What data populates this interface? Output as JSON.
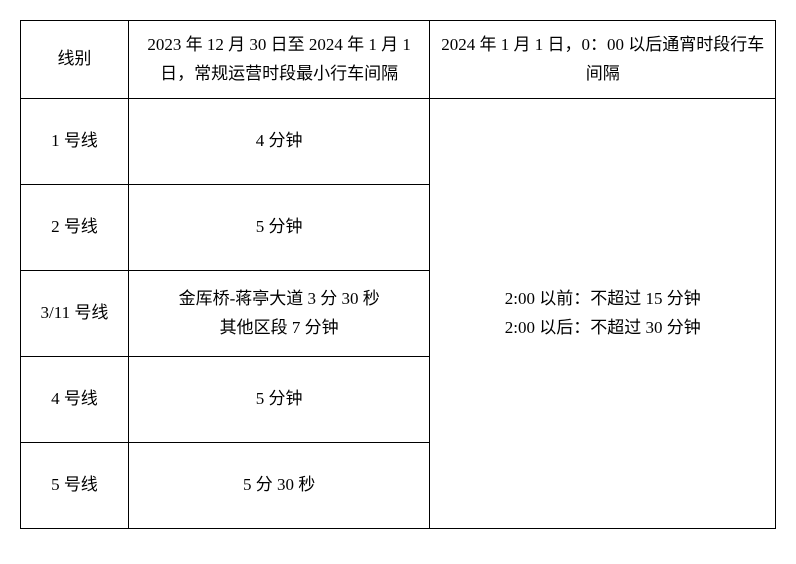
{
  "table": {
    "headers": {
      "line": "线别",
      "regular": "2023 年 12 月 30 日至 2024 年 1 月 1 日，常规运营时段最小行车间隔",
      "overnight": "2024 年 1 月 1 日，0：00 以后通宵时段行车间隔"
    },
    "rows": [
      {
        "line": "1 号线",
        "regular": "4 分钟"
      },
      {
        "line": "2 号线",
        "regular": "5 分钟"
      },
      {
        "line": "3/11 号线",
        "regular": "金厍桥-蒋亭大道 3 分 30 秒\n其他区段 7 分钟"
      },
      {
        "line": "4 号线",
        "regular": "5 分钟"
      },
      {
        "line": "5 号线",
        "regular": "5 分 30 秒"
      }
    ],
    "overnight_merged": "2:00 以前：不超过 15 分钟\n2:00 以后：不超过 30 分钟"
  },
  "style": {
    "background_color": "#ffffff",
    "border_color": "#000000",
    "text_color": "#000000",
    "font_size": 17,
    "font_family": "SimSun"
  }
}
